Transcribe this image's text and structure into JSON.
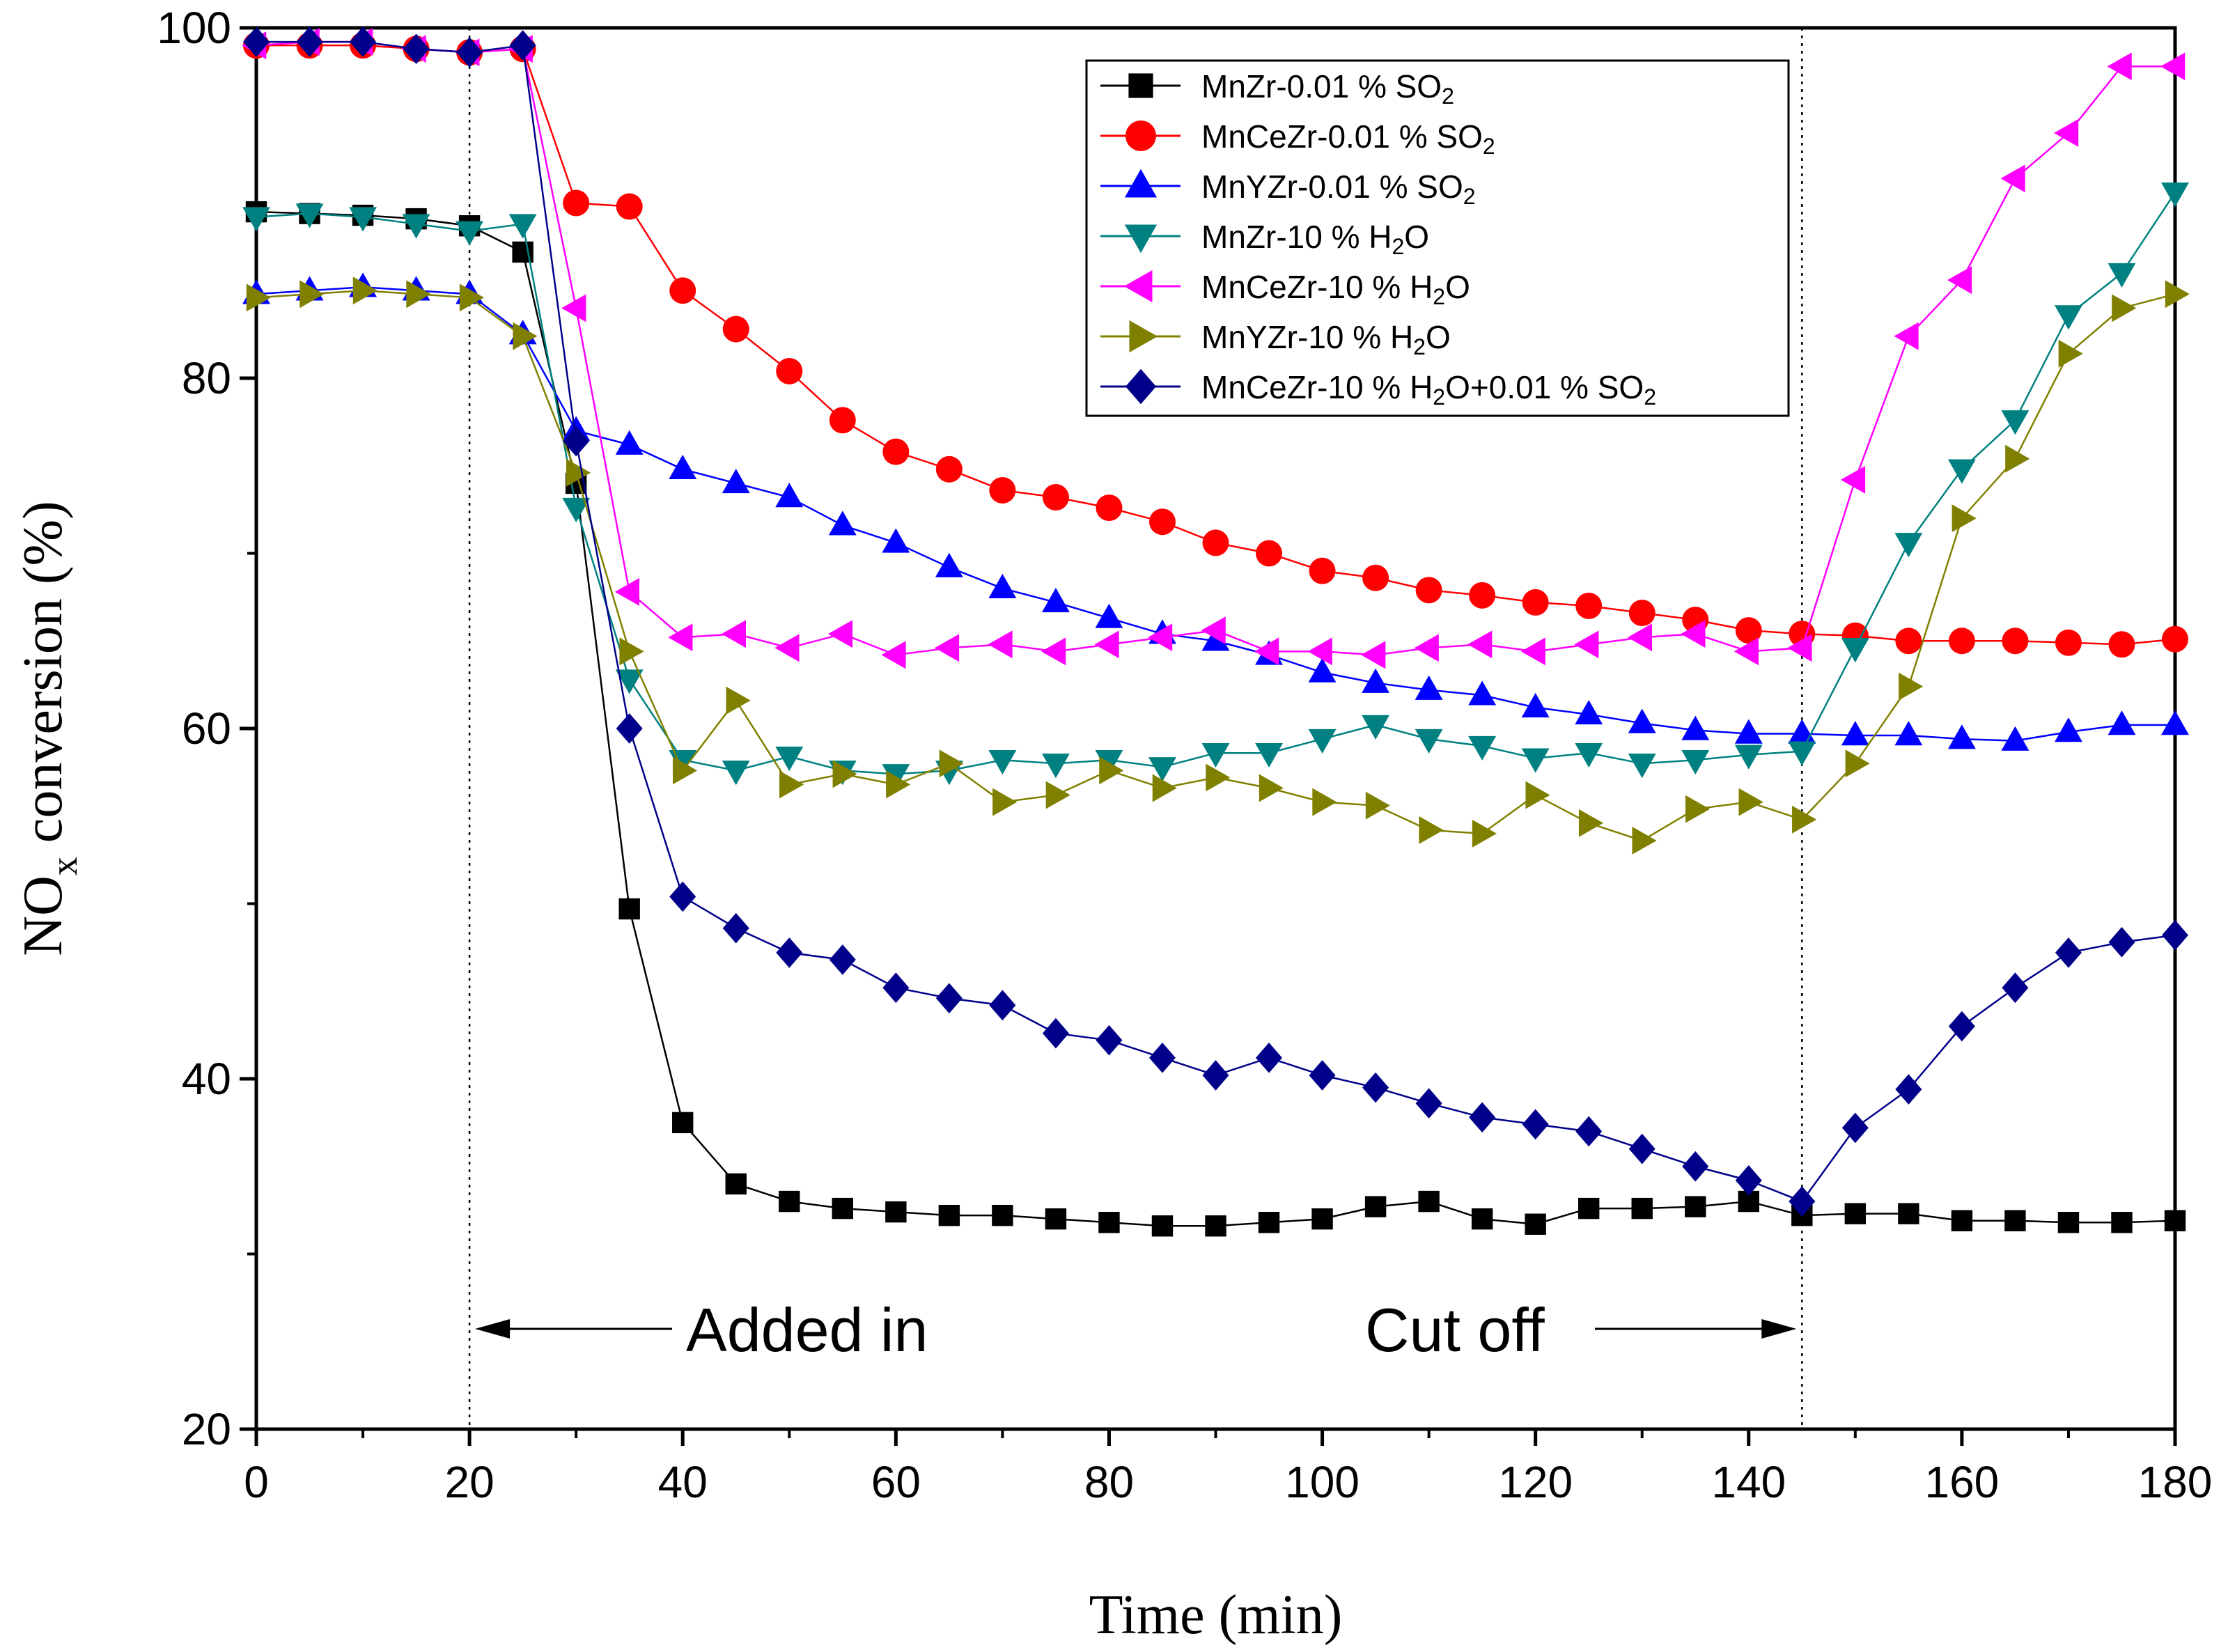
{
  "chart_data": {
    "type": "line",
    "title": "",
    "xlabel": "Time (min)",
    "ylabel": "NO",
    "ylabel_sub": "x",
    "ylabel_rest": " conversion (%)",
    "xlim": [
      0,
      180
    ],
    "ylim": [
      20,
      100
    ],
    "xticks": [
      0,
      20,
      40,
      60,
      80,
      100,
      120,
      140,
      160,
      180
    ],
    "yticks": [
      20,
      40,
      60,
      80,
      100
    ],
    "grid": false,
    "legend_position": "top-right",
    "x": [
      0,
      5,
      10,
      15,
      20,
      25,
      30,
      35,
      40,
      45,
      50,
      55,
      60,
      65,
      70,
      75,
      80,
      85,
      90,
      95,
      100,
      105,
      110,
      115,
      120,
      125,
      130,
      135,
      140,
      145,
      150,
      155,
      160,
      165,
      170,
      175,
      180
    ],
    "series": [
      {
        "name": "MnZr-0.01 % SO2",
        "label_main": "MnZr-0.01 % SO",
        "label_sub": "2",
        "label_tail": "",
        "color": "#000000",
        "marker": "square",
        "values": [
          89.5,
          89.4,
          89.3,
          89.1,
          88.7,
          87.2,
          74,
          49.7,
          37.5,
          34,
          33,
          32.6,
          32.4,
          32.2,
          32.2,
          32,
          31.8,
          31.6,
          31.6,
          31.8,
          32,
          32.7,
          33,
          32,
          31.7,
          32.6,
          32.6,
          32.7,
          33,
          32.2,
          32.3,
          32.3,
          31.9,
          31.9,
          31.8,
          31.8,
          31.9
        ]
      },
      {
        "name": "MnCeZr-0.01 % SO2",
        "label_main": "MnCeZr-0.01 % SO",
        "label_sub": "2",
        "label_tail": "",
        "color": "#ff0000",
        "marker": "circle",
        "values": [
          99,
          99,
          99,
          98.8,
          98.6,
          98.8,
          90,
          89.8,
          85,
          82.8,
          80.4,
          77.6,
          75.8,
          74.8,
          73.6,
          73.2,
          72.6,
          71.8,
          70.6,
          70,
          69,
          68.6,
          67.9,
          67.6,
          67.2,
          67,
          66.6,
          66.2,
          65.6,
          65.4,
          65.3,
          65,
          65,
          65,
          64.9,
          64.8,
          65.1
        ]
      },
      {
        "name": "MnYZr-0.01 % SO2",
        "label_main": "MnYZr-0.01 % SO",
        "label_sub": "2",
        "label_tail": "",
        "color": "#0000ff",
        "marker": "triangle-up",
        "values": [
          84.8,
          85,
          85.2,
          85,
          84.8,
          82.5,
          77,
          76.2,
          74.8,
          74,
          73.2,
          71.6,
          70.6,
          69.2,
          68,
          67.2,
          66.3,
          65.4,
          65,
          64.2,
          63.2,
          62.6,
          62.2,
          61.9,
          61.2,
          60.8,
          60.3,
          59.9,
          59.7,
          59.7,
          59.6,
          59.6,
          59.4,
          59.3,
          59.8,
          60.2,
          60.2
        ]
      },
      {
        "name": "MnZr-10 % H2O",
        "label_main": "MnZr-10 % H",
        "label_sub": "2",
        "label_tail": "O",
        "color": "#008080",
        "marker": "triangle-down",
        "values": [
          89.2,
          89.4,
          89.2,
          88.8,
          88.4,
          88.8,
          72.6,
          62.8,
          58.2,
          57.6,
          58.4,
          57.6,
          57.4,
          57.6,
          58.2,
          58,
          58.2,
          57.8,
          58.6,
          58.6,
          59.4,
          60.2,
          59.4,
          59,
          58.3,
          58.6,
          58,
          58.2,
          58.5,
          58.7,
          64.6,
          70.6,
          74.8,
          77.6,
          83.6,
          86,
          90.6
        ]
      },
      {
        "name": "MnCeZr-10 % H2O",
        "label_main": "MnCeZr-10 % H",
        "label_sub": "2",
        "label_tail": "O",
        "color": "#ff00ff",
        "marker": "triangle-left",
        "values": [
          99,
          99.2,
          99.2,
          98.8,
          98.6,
          98.8,
          84,
          67.8,
          65.2,
          65.4,
          64.6,
          65.4,
          64.2,
          64.6,
          64.8,
          64.4,
          64.8,
          65.2,
          65.6,
          64.4,
          64.4,
          64.2,
          64.6,
          64.8,
          64.4,
          64.8,
          65.2,
          65.4,
          64.4,
          64.6,
          74.2,
          82.4,
          85.6,
          91.4,
          94,
          97.8,
          97.8
        ]
      },
      {
        "name": "MnYZr-10 % H2O",
        "label_main": "MnYZr-10 % H",
        "label_sub": "2",
        "label_tail": "O",
        "color": "#808000",
        "marker": "triangle-right",
        "values": [
          84.6,
          84.8,
          85,
          84.8,
          84.6,
          82.4,
          74.6,
          64.4,
          57.6,
          61.6,
          56.8,
          57.4,
          56.8,
          58,
          55.8,
          56.2,
          57.6,
          56.6,
          57.2,
          56.6,
          55.8,
          55.6,
          54.2,
          54,
          56.2,
          54.6,
          53.6,
          55.4,
          55.8,
          54.8,
          58,
          62.4,
          72,
          75.4,
          81.4,
          84,
          84.8
        ]
      },
      {
        "name": "MnCeZr-10 % H2O+0.01 % SO2",
        "label_main": "MnCeZr-10 % H",
        "label_sub": "2",
        "label_tail": "O+0.01 % SO",
        "label_sub2": "2",
        "color": "#00008b",
        "marker": "diamond",
        "values": [
          99.2,
          99.2,
          99.2,
          98.8,
          98.6,
          99,
          76.4,
          60,
          50.4,
          48.6,
          47.2,
          46.8,
          45.2,
          44.6,
          44.2,
          42.6,
          42.2,
          41.2,
          40.2,
          41.2,
          40.2,
          39.5,
          38.6,
          37.8,
          37.4,
          37,
          36,
          35,
          34.2,
          33,
          37.2,
          39.4,
          43,
          45.2,
          47.2,
          47.8,
          48.2
        ]
      }
    ],
    "annotations": {
      "added_in": "Added in",
      "cut_off": "Cut off",
      "vline_added_x": 20,
      "vline_cutoff_x": 145
    }
  }
}
